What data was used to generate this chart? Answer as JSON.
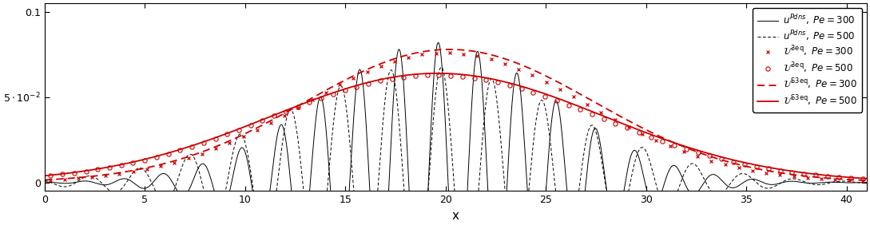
{
  "xlim": [
    0,
    41
  ],
  "ylim": [
    -0.005,
    0.105
  ],
  "xticks": [
    0,
    5,
    10,
    15,
    20,
    25,
    30,
    35,
    40
  ],
  "xlabel": "x",
  "red_color": "#cc0000",
  "figsize": [
    10.89,
    2.82
  ],
  "dpi": 100,
  "dns300": {
    "env_amp": 0.082,
    "env_mu": 19.5,
    "env_sigma": 5.8,
    "osc_freq": 3.2,
    "osc_phase": 0.0
  },
  "dns500": {
    "env_amp": 0.068,
    "env_mu": 19.0,
    "env_sigma": 7.0,
    "osc_freq": 2.5,
    "osc_phase": 0.8
  },
  "smooth300": {
    "amp": 0.076,
    "mu": 20.0,
    "sigma": 7.0
  },
  "smooth500": {
    "amp": 0.063,
    "mu": 19.5,
    "sigma": 8.2
  },
  "smooth300_dashed": {
    "amp": 0.078,
    "mu": 20.2,
    "sigma": 7.2
  },
  "smooth500_solid": {
    "amp": 0.064,
    "mu": 19.6,
    "sigma": 8.3
  }
}
